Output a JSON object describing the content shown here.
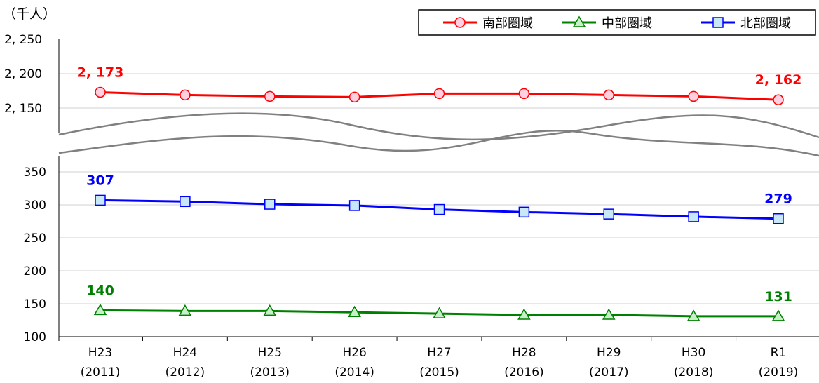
{
  "chart_data": {
    "type": "line",
    "unit_label": "（千人）",
    "categories": [
      {
        "era": "H23",
        "year": "(2011)"
      },
      {
        "era": "H24",
        "year": "(2012)"
      },
      {
        "era": "H25",
        "year": "(2013)"
      },
      {
        "era": "H26",
        "year": "(2014)"
      },
      {
        "era": "H27",
        "year": "(2015)"
      },
      {
        "era": "H28",
        "year": "(2016)"
      },
      {
        "era": "H29",
        "year": "(2017)"
      },
      {
        "era": "H30",
        "year": "(2018)"
      },
      {
        "era": "R1",
        "year": "(2019)"
      }
    ],
    "upper_axis": {
      "ylim": [
        2120,
        2250
      ],
      "ticks": [
        "2, 250",
        "2, 200",
        "2, 150"
      ]
    },
    "lower_axis": {
      "ylim": [
        100,
        375
      ],
      "ticks": [
        "350",
        "300",
        "250",
        "200",
        "150",
        "100"
      ]
    },
    "legend_position": "top-right",
    "series": [
      {
        "name": "南部圏域",
        "color": "#ff0000",
        "marker": "circle",
        "axis": "upper",
        "values": [
          2173,
          2169,
          2167,
          2166,
          2171,
          2171,
          2169,
          2167,
          2162
        ],
        "labels": {
          "first": "2, 173",
          "last": "2, 162"
        }
      },
      {
        "name": "中部圏域",
        "color": "#008000",
        "marker": "triangle",
        "axis": "lower",
        "values": [
          140,
          139,
          139,
          137,
          135,
          133,
          133,
          131,
          131
        ],
        "labels": {
          "first": "140",
          "last": "131"
        }
      },
      {
        "name": "北部圏域",
        "color": "#0000ff",
        "marker": "square",
        "axis": "lower",
        "values": [
          307,
          305,
          301,
          299,
          293,
          289,
          286,
          282,
          279
        ],
        "labels": {
          "first": "307",
          "last": "279"
        }
      }
    ]
  }
}
